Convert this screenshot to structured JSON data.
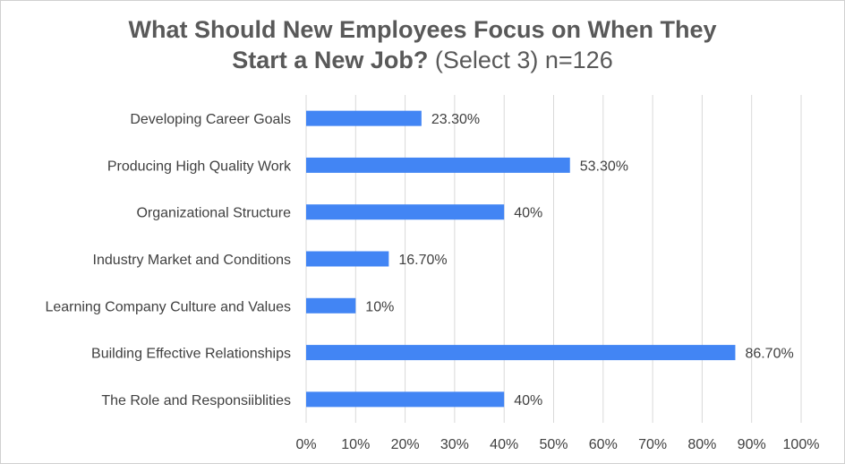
{
  "chart_data": {
    "type": "bar",
    "orientation": "horizontal",
    "title_line1": "What Should New Employees Focus on When They",
    "title_line2_bold": "Start a New Job?",
    "title_line2_regular": "(Select 3) n=126",
    "categories": [
      "Developing Career Goals",
      "Producing High Quality Work",
      "Organizational Structure",
      "Industry Market and Conditions",
      "Learning Company Culture and Values",
      "Building Effective Relationships",
      "The Role and Responsiiblities"
    ],
    "values": [
      23.3,
      53.3,
      40,
      16.7,
      10,
      86.7,
      40
    ],
    "data_labels": [
      "23.30%",
      "53.30%",
      "40%",
      "16.70%",
      "10%",
      "86.70%",
      "40%"
    ],
    "xlim": [
      0,
      100
    ],
    "xticks": [
      "0%",
      "10%",
      "20%",
      "30%",
      "40%",
      "50%",
      "60%",
      "70%",
      "80%",
      "90%",
      "100%"
    ],
    "grid": true,
    "bar_color": "#4285f4",
    "grid_color": "#d9d9d9"
  }
}
